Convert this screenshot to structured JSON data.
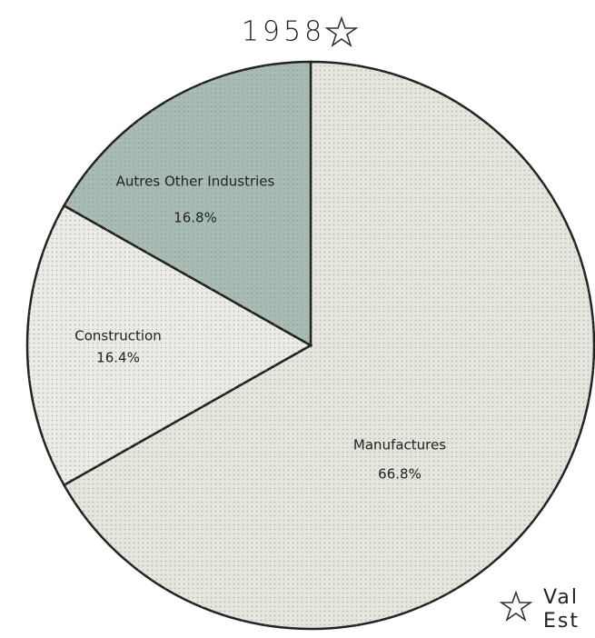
{
  "chart_data": {
    "type": "pie",
    "title": "1958",
    "categories": [
      "Manufactures",
      "Construction",
      "Autres Other Industries"
    ],
    "values": [
      66.8,
      16.4,
      16.8
    ],
    "value_labels": [
      "66.8%",
      "16.4%",
      "16.8%"
    ],
    "colors": [
      "#e6e6de",
      "#ecece6",
      "#a8bcb4"
    ],
    "note": [
      "Val",
      "Est"
    ]
  }
}
